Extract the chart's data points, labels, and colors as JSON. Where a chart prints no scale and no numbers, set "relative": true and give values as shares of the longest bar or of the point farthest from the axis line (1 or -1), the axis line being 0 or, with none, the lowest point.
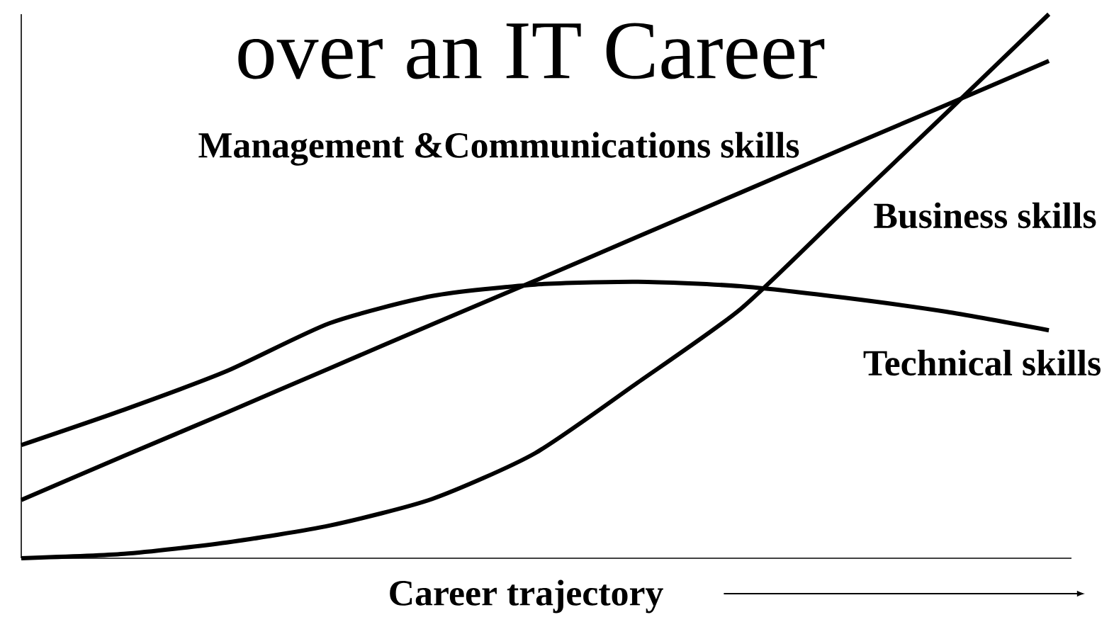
{
  "chart_data": {
    "type": "line",
    "title": "over an IT Career",
    "xlabel": "Career trajectory",
    "relative": true,
    "categories": [
      null,
      null,
      null,
      null,
      null,
      null,
      null,
      null,
      null,
      null,
      null
    ],
    "series": [
      {
        "name": "Management &Communications skills",
        "color": "#000000",
        "values": [
          0.107,
          0.188,
          0.268,
          0.349,
          0.43,
          0.51,
          0.591,
          0.672,
          0.753,
          0.833,
          0.914
        ]
      },
      {
        "name": "Business skills",
        "color": "#000000",
        "values": [
          0,
          0.008,
          0.029,
          0.06,
          0.109,
          0.193,
          0.323,
          0.458,
          0.638,
          0.818,
          1.0
        ]
      },
      {
        "name": "Technical skills",
        "color": "#000000",
        "values": [
          0.208,
          0.273,
          0.344,
          0.432,
          0.482,
          0.503,
          0.508,
          0.5,
          0.479,
          0.453,
          0.419
        ]
      }
    ]
  }
}
